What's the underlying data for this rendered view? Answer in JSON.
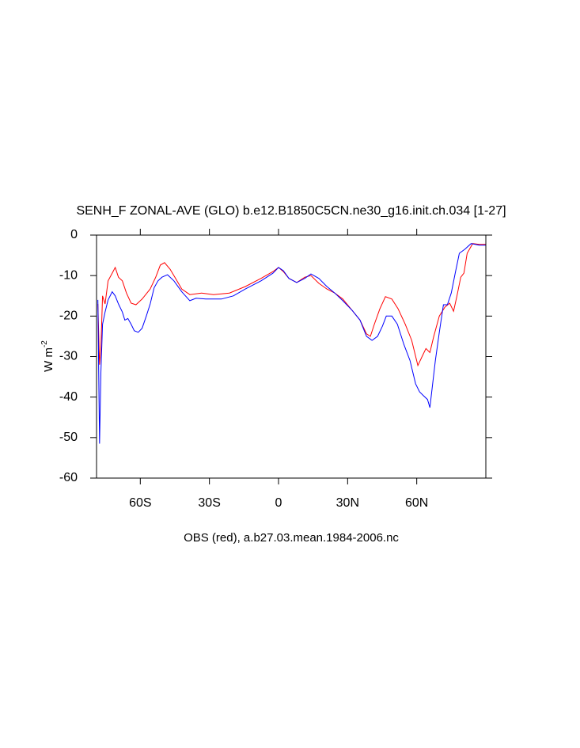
{
  "chart_data": {
    "type": "line",
    "title": "SENH_F ZONAL-AVE (GLO) b.e12.B1850C5CN.ne30_g16.init.ch.034 [1-27]",
    "x_label": "OBS (red), a.b27.03.mean.1984-2006.nc",
    "y_label": "W m",
    "y_label_superscript": "-2",
    "xlim": [
      -79,
      90
    ],
    "ylim": [
      -60,
      0
    ],
    "xticks": [
      {
        "value": -60,
        "label": "60S"
      },
      {
        "value": -30,
        "label": "30S"
      },
      0,
      {
        "value": 30,
        "label": "30N"
      },
      {
        "value": 60,
        "label": "60N"
      }
    ],
    "yticks": [
      0,
      -10,
      -20,
      -30,
      -40,
      -50,
      -60
    ],
    "series": [
      {
        "color": "#ff0000",
        "x": [
          -78.4,
          -77.7,
          -77.1,
          -76.4,
          -75.3,
          -74.0,
          -72.2,
          -70.9,
          -69.5,
          -67.8,
          -66.0,
          -64.0,
          -61.9,
          -59.2,
          -55.7,
          -53.3,
          -51.3,
          -49.5,
          -47.1,
          -44.7,
          -42.0,
          -38.5,
          -33.4,
          -28.2,
          -21.3,
          -14.4,
          -7.6,
          -2.4,
          0,
          2.1,
          4.5,
          7.9,
          11.4,
          14.1,
          17.5,
          21.0,
          24.4,
          27.9,
          32.0,
          35.4,
          38.2,
          39.9,
          41.6,
          44.0,
          46.4,
          49.2,
          51.9,
          55.0,
          57.8,
          60.5,
          62.3,
          64.0,
          65.7,
          67.4,
          69.8,
          72.2,
          74.3,
          76.0,
          77.4,
          79.1,
          80.5,
          81.9,
          84.3,
          87.1,
          90
        ],
        "values": [
          -17,
          -32,
          -28,
          -15,
          -17,
          -11.3,
          -9.4,
          -8,
          -10.4,
          -11.3,
          -14.3,
          -16.8,
          -17.2,
          -15.8,
          -13.3,
          -10.4,
          -7.4,
          -6.8,
          -8.4,
          -10.7,
          -13.3,
          -14.7,
          -14.3,
          -14.7,
          -14.3,
          -12.7,
          -10.7,
          -9,
          -8,
          -9,
          -10.7,
          -11.7,
          -10.4,
          -10,
          -11.9,
          -13.3,
          -14.3,
          -15.8,
          -18.6,
          -21,
          -24.4,
          -25,
          -22,
          -18.2,
          -15.2,
          -15.8,
          -18.2,
          -22,
          -26,
          -32.2,
          -30,
          -28,
          -29,
          -25,
          -20,
          -17.8,
          -16.8,
          -18.8,
          -15.2,
          -10.4,
          -9.4,
          -4.5,
          -2.1,
          -2.3,
          -2.3
        ]
      },
      {
        "color": "#0000ff",
        "x": [
          -78.4,
          -77.7,
          -77.1,
          -76.4,
          -75.3,
          -74.0,
          -72.2,
          -70.9,
          -69.5,
          -67.8,
          -66.7,
          -65.4,
          -64.0,
          -62.6,
          -60.9,
          -59.2,
          -57.4,
          -55.7,
          -54.0,
          -52.3,
          -50.6,
          -48.2,
          -45.4,
          -42.0,
          -38.5,
          -35.8,
          -31.6,
          -24.8,
          -19.6,
          -14.4,
          -7.6,
          -2.4,
          0,
          2.1,
          4.5,
          7.9,
          11.4,
          14.1,
          17.5,
          21.0,
          24.4,
          27.9,
          32.0,
          35.4,
          38.2,
          40.6,
          43.0,
          45.1,
          46.8,
          49.2,
          51.6,
          54.4,
          57.1,
          59.5,
          61.2,
          63.0,
          64.7,
          65.7,
          66.7,
          68.1,
          69.8,
          71.6,
          73.3,
          75.0,
          76.7,
          78.5,
          80.9,
          83.6,
          87.1,
          90
        ],
        "values": [
          -16,
          -51.5,
          -34,
          -22,
          -19,
          -16,
          -14,
          -15,
          -17,
          -19,
          -21,
          -20.6,
          -22,
          -23.6,
          -24,
          -23,
          -20,
          -17,
          -13,
          -11.3,
          -10.4,
          -9.8,
          -11.3,
          -14,
          -16.2,
          -15.6,
          -15.8,
          -15.8,
          -15,
          -13.3,
          -11.3,
          -9.4,
          -8,
          -8.8,
          -10.7,
          -11.7,
          -10.7,
          -9.6,
          -10.7,
          -12.7,
          -14.3,
          -16.2,
          -18.6,
          -21,
          -25,
          -26,
          -25,
          -22.5,
          -20,
          -20,
          -22,
          -27,
          -31,
          -36.7,
          -38.7,
          -39.7,
          -40.6,
          -42.6,
          -37.7,
          -31,
          -24,
          -17.2,
          -17.2,
          -14.3,
          -9.4,
          -4.5,
          -3.5,
          -2.1,
          -2.5,
          -2.5
        ]
      }
    ]
  }
}
